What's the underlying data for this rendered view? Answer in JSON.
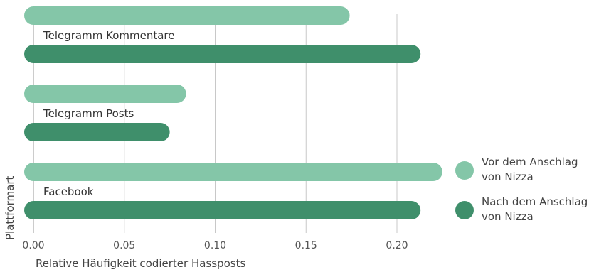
{
  "chart_data": {
    "type": "bar",
    "orientation": "horizontal",
    "categories": [
      "Telegramm Kommentare",
      "Telegramm Posts",
      "Facebook"
    ],
    "series": [
      {
        "name": "Vor dem Anschlag von Nizza",
        "name_lines": [
          "Vor dem Anschlag",
          "von Nizza"
        ],
        "color": "#84c6a8",
        "values": [
          0.174,
          0.084,
          0.225
        ]
      },
      {
        "name": "Nach dem Anschlag von Nizza",
        "name_lines": [
          "Nach dem Anschlag",
          "von Nizza"
        ],
        "color": "#3f8f6b",
        "values": [
          0.213,
          0.075,
          0.213
        ]
      }
    ],
    "xlabel": "Relative Häufigkeit codierter Hassposts",
    "ylabel": "Plattformart",
    "xlim": [
      0,
      0.23
    ],
    "xticks": [
      "0.00",
      "0.05",
      "0.10",
      "0.15",
      "0.20"
    ],
    "grid": true,
    "legend_position": "right"
  }
}
